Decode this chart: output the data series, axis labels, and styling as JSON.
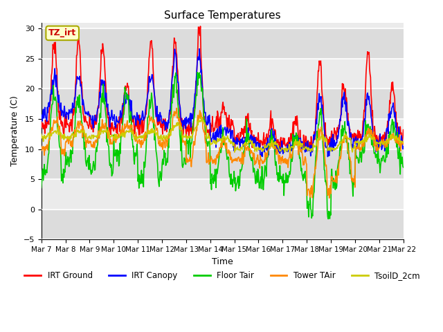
{
  "title": "Surface Temperatures",
  "xlabel": "Time",
  "ylabel": "Temperature (C)",
  "ylim": [
    -5,
    31
  ],
  "yticks": [
    -5,
    0,
    5,
    10,
    15,
    20,
    25,
    30
  ],
  "annotation_text": "TZ_irt",
  "annotation_color": "#cc0000",
  "x_tick_labels": [
    "Mar 7",
    "Mar 8",
    "Mar 9",
    "Mar 10",
    "Mar 11",
    "Mar 12",
    "Mar 13",
    "Mar 14",
    "Mar 15",
    "Mar 16",
    "Mar 17",
    "Mar 18",
    "Mar 19",
    "Mar 20",
    "Mar 21",
    "Mar 22"
  ],
  "series": {
    "IRT Ground": {
      "color": "#ff0000",
      "lw": 1.2
    },
    "IRT Canopy": {
      "color": "#0000ff",
      "lw": 1.2
    },
    "Floor Tair": {
      "color": "#00cc00",
      "lw": 1.2
    },
    "Tower TAir": {
      "color": "#ff8800",
      "lw": 1.2
    },
    "TsoilD_2cm": {
      "color": "#cccc00",
      "lw": 1.2
    }
  },
  "bg_dark": "#dcdcdc",
  "bg_light": "#ebebeb",
  "grid_color": "#ffffff",
  "irt_g_peaks": [
    28,
    28,
    27,
    21,
    28,
    28,
    30,
    17,
    15,
    15,
    15,
    25,
    21,
    26,
    21
  ],
  "irt_g_nights": [
    14,
    14,
    14,
    14,
    14,
    14,
    13,
    14,
    12,
    11,
    11,
    11,
    12,
    12,
    12
  ],
  "irt_c_peaks": [
    22,
    22,
    21,
    19,
    22,
    25,
    25,
    14,
    12,
    12,
    12,
    19,
    19,
    19,
    17
  ],
  "irt_c_nights": [
    16,
    16,
    15,
    15,
    15,
    14,
    15,
    12,
    11,
    10,
    10,
    10,
    11,
    11,
    11
  ],
  "fl_peaks": [
    19,
    19,
    19,
    19,
    19,
    22,
    23,
    12,
    12,
    12,
    12,
    16,
    14,
    14,
    14
  ],
  "fl_nights": [
    6,
    8,
    7,
    9,
    5,
    8,
    11,
    5,
    5,
    5,
    5,
    0,
    5,
    8,
    8
  ],
  "twr_peaks": [
    15,
    14,
    14,
    14,
    15,
    16,
    16,
    11,
    10,
    11,
    11,
    13,
    12,
    13,
    12
  ],
  "twr_nights": [
    10,
    11,
    11,
    12,
    11,
    11,
    8,
    8,
    8,
    8,
    8,
    3,
    5,
    10,
    11
  ],
  "soil_peaks": [
    13,
    13,
    13,
    13,
    13,
    14,
    15,
    12,
    11,
    11,
    11,
    12,
    12,
    12,
    12
  ],
  "soil_nights": [
    12,
    12,
    12,
    12,
    12,
    12,
    12,
    11,
    10,
    10,
    10,
    10,
    10,
    11,
    11
  ]
}
